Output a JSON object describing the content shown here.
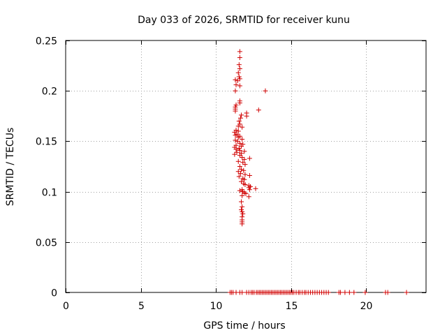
{
  "chart_data": {
    "type": "scatter",
    "title": "Day 033 of 2026, SRMTID for receiver kunu",
    "xlabel": "GPS time / hours",
    "ylabel": "SRMTID / TECUs",
    "xlim": [
      0,
      24
    ],
    "ylim": [
      0,
      0.25
    ],
    "xticks": [
      0,
      5,
      10,
      15,
      20
    ],
    "yticks": [
      0,
      0.05,
      0.1,
      0.15,
      0.2,
      0.25
    ],
    "xtick_labels": [
      "0",
      "5",
      "10",
      "15",
      "20"
    ],
    "ytick_labels": [
      "0",
      "0.05",
      "0.1",
      "0.15",
      "0.2",
      "0.25"
    ],
    "grid": true,
    "marker": "+",
    "color": "#d00000",
    "points": [
      [
        11.6,
        0.239
      ],
      [
        11.6,
        0.233
      ],
      [
        11.55,
        0.226
      ],
      [
        11.6,
        0.222
      ],
      [
        11.5,
        0.218
      ],
      [
        11.55,
        0.214
      ],
      [
        11.6,
        0.212
      ],
      [
        11.3,
        0.211
      ],
      [
        11.45,
        0.21
      ],
      [
        11.35,
        0.206
      ],
      [
        11.6,
        0.205
      ],
      [
        11.3,
        0.2
      ],
      [
        13.3,
        0.2
      ],
      [
        11.6,
        0.19
      ],
      [
        11.6,
        0.188
      ],
      [
        11.35,
        0.186
      ],
      [
        11.3,
        0.184
      ],
      [
        11.3,
        0.182
      ],
      [
        11.3,
        0.18
      ],
      [
        12.85,
        0.181
      ],
      [
        12.05,
        0.178
      ],
      [
        12.05,
        0.175
      ],
      [
        11.7,
        0.176
      ],
      [
        11.65,
        0.173
      ],
      [
        11.55,
        0.17
      ],
      [
        11.6,
        0.167
      ],
      [
        11.5,
        0.165
      ],
      [
        11.75,
        0.164
      ],
      [
        11.35,
        0.161
      ],
      [
        11.5,
        0.16
      ],
      [
        11.25,
        0.159
      ],
      [
        11.4,
        0.157
      ],
      [
        11.3,
        0.156
      ],
      [
        11.6,
        0.155
      ],
      [
        11.5,
        0.154
      ],
      [
        11.75,
        0.152
      ],
      [
        11.3,
        0.151
      ],
      [
        11.45,
        0.15
      ],
      [
        11.6,
        0.148
      ],
      [
        11.8,
        0.147
      ],
      [
        11.35,
        0.146
      ],
      [
        11.7,
        0.145
      ],
      [
        11.25,
        0.144
      ],
      [
        11.55,
        0.143
      ],
      [
        11.35,
        0.142
      ],
      [
        11.6,
        0.141
      ],
      [
        11.9,
        0.14
      ],
      [
        11.4,
        0.139
      ],
      [
        11.7,
        0.138
      ],
      [
        11.25,
        0.137
      ],
      [
        11.6,
        0.136
      ],
      [
        11.75,
        0.134
      ],
      [
        12.25,
        0.133
      ],
      [
        11.9,
        0.132
      ],
      [
        11.5,
        0.13
      ],
      [
        11.8,
        0.129
      ],
      [
        11.95,
        0.127
      ],
      [
        11.6,
        0.125
      ],
      [
        11.7,
        0.122
      ],
      [
        11.85,
        0.121
      ],
      [
        11.5,
        0.12
      ],
      [
        11.65,
        0.118
      ],
      [
        12.25,
        0.116
      ],
      [
        11.95,
        0.117
      ],
      [
        11.55,
        0.115
      ],
      [
        11.8,
        0.113
      ],
      [
        11.9,
        0.112
      ],
      [
        11.7,
        0.11
      ],
      [
        11.85,
        0.108
      ],
      [
        11.95,
        0.107
      ],
      [
        12.2,
        0.106
      ],
      [
        12.3,
        0.105
      ],
      [
        12.2,
        0.104
      ],
      [
        12.65,
        0.103
      ],
      [
        11.75,
        0.102
      ],
      [
        12.25,
        0.102
      ],
      [
        11.6,
        0.101
      ],
      [
        11.8,
        0.1
      ],
      [
        11.9,
        0.099
      ],
      [
        12.0,
        0.098
      ],
      [
        11.75,
        0.096
      ],
      [
        12.2,
        0.095
      ],
      [
        11.7,
        0.09
      ],
      [
        11.75,
        0.085
      ],
      [
        11.7,
        0.082
      ],
      [
        11.75,
        0.08
      ],
      [
        11.8,
        0.078
      ],
      [
        11.75,
        0.075
      ],
      [
        11.75,
        0.072
      ],
      [
        11.75,
        0.07
      ],
      [
        11.75,
        0.068
      ],
      [
        10.95,
        0.0
      ],
      [
        11.05,
        0.0
      ],
      [
        11.15,
        0.0
      ],
      [
        11.35,
        0.0
      ],
      [
        11.6,
        0.0
      ],
      [
        11.75,
        0.0
      ],
      [
        12.05,
        0.0
      ],
      [
        12.2,
        0.0
      ],
      [
        12.35,
        0.0
      ],
      [
        12.45,
        0.0
      ],
      [
        12.55,
        0.0
      ],
      [
        12.7,
        0.0
      ],
      [
        12.8,
        0.0
      ],
      [
        12.9,
        0.0
      ],
      [
        13.0,
        0.0
      ],
      [
        13.1,
        0.0
      ],
      [
        13.2,
        0.0
      ],
      [
        13.3,
        0.0
      ],
      [
        13.4,
        0.0
      ],
      [
        13.5,
        0.0
      ],
      [
        13.6,
        0.0
      ],
      [
        13.7,
        0.0
      ],
      [
        13.8,
        0.0
      ],
      [
        13.9,
        0.0
      ],
      [
        14.0,
        0.0
      ],
      [
        14.1,
        0.0
      ],
      [
        14.2,
        0.0
      ],
      [
        14.3,
        0.0
      ],
      [
        14.4,
        0.0
      ],
      [
        14.5,
        0.0
      ],
      [
        14.6,
        0.0
      ],
      [
        14.7,
        0.0
      ],
      [
        14.8,
        0.0
      ],
      [
        14.9,
        0.0
      ],
      [
        15.0,
        0.0
      ],
      [
        15.1,
        0.0
      ],
      [
        15.2,
        0.0
      ],
      [
        15.35,
        0.0
      ],
      [
        15.5,
        0.0
      ],
      [
        15.6,
        0.0
      ],
      [
        15.75,
        0.0
      ],
      [
        15.9,
        0.0
      ],
      [
        16.0,
        0.0
      ],
      [
        16.15,
        0.0
      ],
      [
        16.3,
        0.0
      ],
      [
        16.45,
        0.0
      ],
      [
        16.6,
        0.0
      ],
      [
        16.75,
        0.0
      ],
      [
        16.9,
        0.0
      ],
      [
        17.05,
        0.0
      ],
      [
        17.2,
        0.0
      ],
      [
        17.35,
        0.0
      ],
      [
        17.5,
        0.0
      ],
      [
        18.2,
        0.0
      ],
      [
        18.3,
        0.0
      ],
      [
        18.6,
        0.0
      ],
      [
        18.9,
        0.0
      ],
      [
        19.2,
        0.0
      ],
      [
        19.95,
        0.0
      ],
      [
        21.3,
        0.0
      ],
      [
        21.45,
        0.0
      ],
      [
        22.7,
        0.0
      ]
    ]
  }
}
